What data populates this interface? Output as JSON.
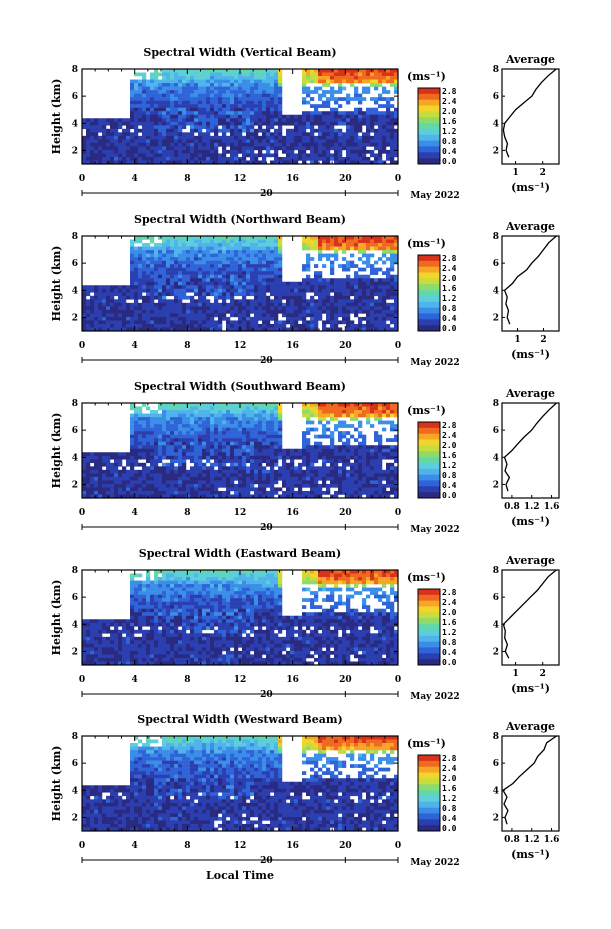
{
  "figure": {
    "date_label": "May 2022",
    "xlabel": "Local Time",
    "ylabel": "Height (km)",
    "unit_label": "(ms⁻¹)",
    "avg_title": "Average",
    "avg_xlabel": "(ms⁻¹)",
    "x_ticks": [
      "0",
      "4",
      "8",
      "12",
      "16",
      "20",
      "0"
    ],
    "date_tick": "20",
    "y_ticks": [
      "2",
      "4",
      "6",
      "8"
    ],
    "colorscale": [
      "#2a2a80",
      "#2b3fb0",
      "#2f63d8",
      "#3a8ee8",
      "#4fb4ec",
      "#5ccfd8",
      "#62d7a8",
      "#8ddb6a",
      "#c8dc3c",
      "#f2d52c",
      "#f7a623",
      "#ef6a1f",
      "#d8321c"
    ]
  },
  "chart_data": [
    {
      "type": "heatmap",
      "title": "Spectral Width (Vertical Beam)",
      "x_range_hours": [
        0,
        24
      ],
      "y_range_km": [
        1,
        8
      ],
      "colorbar_ticks": [
        "2.8",
        "2.4",
        "2.0",
        "1.6",
        "1.2",
        "0.8",
        "0.4",
        "0.0"
      ],
      "average_profile": {
        "x_ticks": [
          "1",
          "2"
        ],
        "xlim": [
          0.5,
          2.6
        ],
        "height_km": [
          1.5,
          2.0,
          2.5,
          3.0,
          3.5,
          4.0,
          4.5,
          5.0,
          5.5,
          6.0,
          6.5,
          7.0,
          7.5,
          8.0
        ],
        "width": [
          0.75,
          0.65,
          0.7,
          0.6,
          0.55,
          0.6,
          0.8,
          1.0,
          1.3,
          1.6,
          1.75,
          1.95,
          2.2,
          2.5
        ]
      }
    },
    {
      "type": "heatmap",
      "title": "Spectral Width (Northward Beam)",
      "x_range_hours": [
        0,
        24
      ],
      "y_range_km": [
        1,
        8
      ],
      "colorbar_ticks": [
        "2.8",
        "2.4",
        "2.0",
        "1.6",
        "1.2",
        "0.8",
        "0.4",
        "0.0"
      ],
      "average_profile": {
        "x_ticks": [
          "1",
          "2"
        ],
        "xlim": [
          0.4,
          2.6
        ],
        "height_km": [
          1.5,
          2.0,
          2.5,
          3.0,
          3.5,
          4.0,
          4.5,
          5.0,
          5.5,
          6.0,
          6.5,
          7.0,
          7.5,
          8.0
        ],
        "width": [
          0.7,
          0.6,
          0.65,
          0.55,
          0.6,
          0.5,
          0.8,
          1.0,
          1.35,
          1.55,
          1.8,
          2.0,
          2.2,
          2.5
        ]
      }
    },
    {
      "type": "heatmap",
      "title": "Spectral Width (Southward Beam)",
      "x_range_hours": [
        0,
        24
      ],
      "y_range_km": [
        1,
        8
      ],
      "colorbar_ticks": [
        "2.8",
        "2.4",
        "2.0",
        "1.6",
        "1.2",
        "0.8",
        "0.4",
        "0.0"
      ],
      "average_profile": {
        "x_ticks": [
          "0.8",
          "1.2",
          "1.6"
        ],
        "xlim": [
          0.6,
          1.75
        ],
        "height_km": [
          1.5,
          2.0,
          2.5,
          3.0,
          3.5,
          4.0,
          4.5,
          5.0,
          5.5,
          6.0,
          6.5,
          7.0,
          7.5,
          8.0
        ],
        "width": [
          0.72,
          0.68,
          0.75,
          0.66,
          0.7,
          0.65,
          0.8,
          0.92,
          1.05,
          1.2,
          1.3,
          1.42,
          1.55,
          1.7
        ]
      }
    },
    {
      "type": "heatmap",
      "title": "Spectral Width (Eastward Beam)",
      "x_range_hours": [
        0,
        24
      ],
      "y_range_km": [
        1,
        8
      ],
      "colorbar_ticks": [
        "2.8",
        "2.4",
        "2.0",
        "1.6",
        "1.2",
        "0.8",
        "0.4",
        "0.0"
      ],
      "average_profile": {
        "x_ticks": [
          "1",
          "2"
        ],
        "xlim": [
          0.5,
          2.6
        ],
        "height_km": [
          1.5,
          2.0,
          2.5,
          3.0,
          3.5,
          4.0,
          4.5,
          5.0,
          5.5,
          6.0,
          6.5,
          7.0,
          7.5,
          8.0
        ],
        "width": [
          0.75,
          0.62,
          0.7,
          0.6,
          0.62,
          0.55,
          0.8,
          1.05,
          1.3,
          1.55,
          1.8,
          2.0,
          2.2,
          2.5
        ]
      }
    },
    {
      "type": "heatmap",
      "title": "Spectral Width (Westward Beam)",
      "x_range_hours": [
        0,
        24
      ],
      "y_range_km": [
        1,
        8
      ],
      "colorbar_ticks": [
        "2.8",
        "2.4",
        "2.0",
        "1.6",
        "1.2",
        "0.8",
        "0.4",
        "0.0"
      ],
      "average_profile": {
        "x_ticks": [
          "0.8",
          "1.2",
          "1.6"
        ],
        "xlim": [
          0.6,
          1.75
        ],
        "height_km": [
          1.5,
          2.0,
          2.5,
          3.0,
          3.5,
          4.0,
          4.5,
          5.0,
          5.5,
          6.0,
          6.5,
          7.0,
          7.5,
          8.0
        ],
        "width": [
          0.7,
          0.66,
          0.72,
          0.64,
          0.7,
          0.62,
          0.82,
          0.95,
          1.1,
          1.25,
          1.32,
          1.45,
          1.5,
          1.7
        ]
      }
    }
  ]
}
